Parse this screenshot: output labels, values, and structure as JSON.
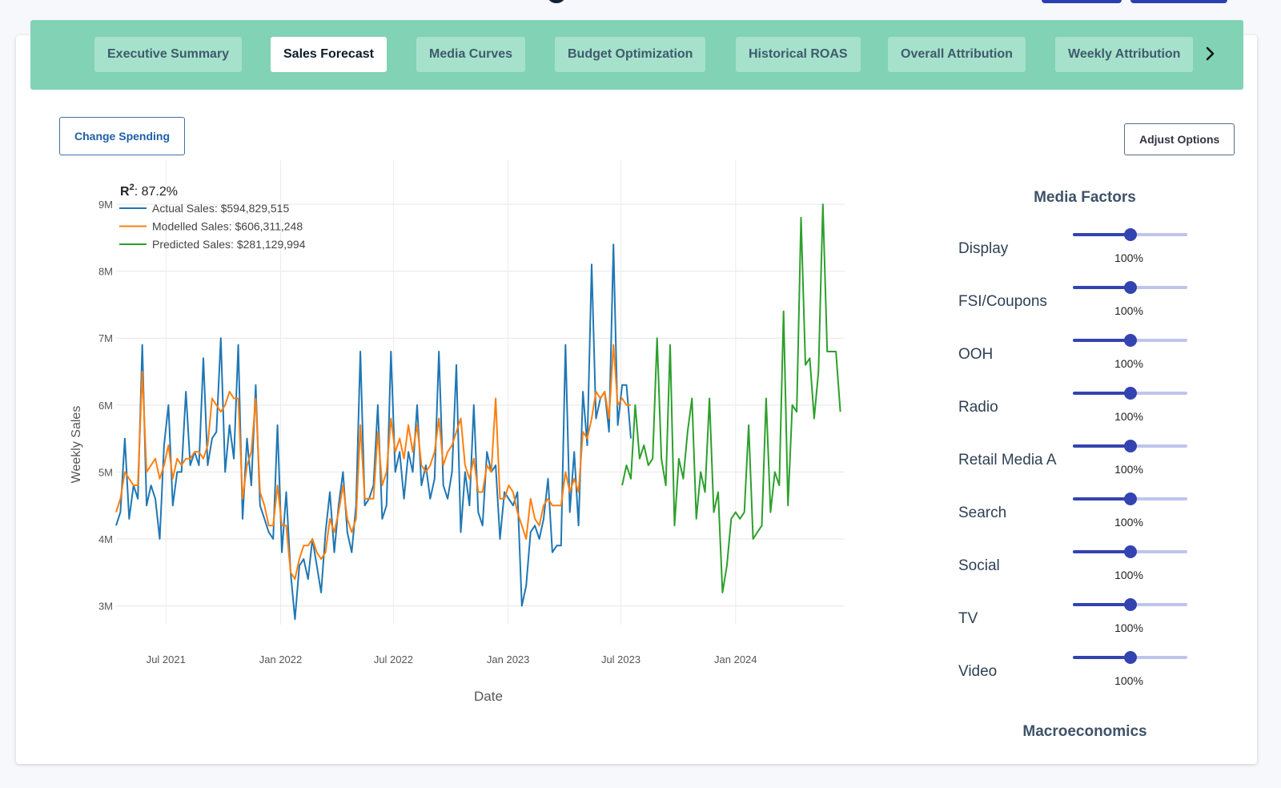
{
  "colors": {
    "actual": "#1f77b4",
    "modelled": "#ff7f0e",
    "predicted": "#2ca02c",
    "tabbar": "#82d2b5",
    "slider": "#3343b0"
  },
  "tabs": [
    {
      "label": "Executive Summary",
      "active": false
    },
    {
      "label": "Sales Forecast",
      "active": true
    },
    {
      "label": "Media Curves",
      "active": false
    },
    {
      "label": "Budget Optimization",
      "active": false
    },
    {
      "label": "Historical ROAS",
      "active": false
    },
    {
      "label": "Overall Attribution",
      "active": false
    },
    {
      "label": "Weekly Attribution",
      "active": false
    }
  ],
  "tab_next_icon": "chevron-right-icon",
  "buttons": {
    "change_spending": "Change Spending",
    "adjust_options": "Adjust Options"
  },
  "media_factors": {
    "title": "Media Factors",
    "items": [
      {
        "label": "Display",
        "value": "100%",
        "level": 0.5
      },
      {
        "label": "FSI/Coupons",
        "value": "100%",
        "level": 0.5
      },
      {
        "label": "OOH",
        "value": "100%",
        "level": 0.5
      },
      {
        "label": "Radio",
        "value": "100%",
        "level": 0.5
      },
      {
        "label": "Retail Media A",
        "value": "100%",
        "level": 0.5
      },
      {
        "label": "Search",
        "value": "100%",
        "level": 0.5
      },
      {
        "label": "Social",
        "value": "100%",
        "level": 0.5
      },
      {
        "label": "TV",
        "value": "100%",
        "level": 0.5
      },
      {
        "label": "Video",
        "value": "100%",
        "level": 0.5
      }
    ]
  },
  "macro_title": "Macroeconomics",
  "chart_data": {
    "type": "line",
    "r2_label": "R",
    "r2_superscript": "2",
    "r2_value": ": 87.2%",
    "xlabel": "Date",
    "ylabel": "Weekly Sales",
    "x_ticks": [
      "Jul 2021",
      "Jan 2022",
      "Jul 2022",
      "Jan 2023",
      "Jul 2023",
      "Jan 2024"
    ],
    "y_ticks": [
      "3M",
      "4M",
      "5M",
      "6M",
      "7M",
      "8M",
      "9M"
    ],
    "ylim": [
      2.6,
      9.3
    ],
    "grid": true,
    "legend_position": "top-left",
    "series": [
      {
        "name": "Actual Sales: $594,829,515",
        "start": "2021-04-12",
        "values": [
          4.2,
          4.4,
          5.5,
          4.3,
          4.8,
          4.6,
          6.9,
          4.5,
          4.8,
          4.6,
          4.0,
          5.4,
          6.0,
          4.5,
          5.0,
          5.0,
          6.2,
          5.1,
          5.3,
          5.1,
          6.7,
          5.1,
          5.5,
          5.6,
          7.0,
          5.0,
          5.7,
          5.2,
          6.9,
          4.3,
          5.5,
          4.8,
          6.3,
          4.5,
          4.3,
          4.1,
          4.0,
          5.7,
          3.8,
          4.7,
          3.5,
          2.8,
          3.6,
          3.7,
          3.4,
          4.0,
          3.6,
          3.2,
          4.1,
          4.7,
          3.8,
          4.5,
          5.0,
          4.1,
          3.8,
          4.5,
          6.8,
          4.5,
          4.6,
          4.8,
          6.0,
          4.3,
          4.5,
          6.8,
          5.0,
          5.3,
          4.6,
          5.3,
          5.0,
          6.0,
          4.8,
          5.1,
          4.6,
          4.9,
          6.8,
          4.8,
          4.6,
          5.0,
          6.6,
          4.1,
          5.0,
          4.5,
          6.0,
          4.4,
          4.2,
          5.3,
          5.0,
          5.1,
          4.0,
          4.7,
          4.6,
          4.5,
          4.7,
          3.0,
          3.3,
          4.1,
          4.2,
          4.0,
          4.3,
          4.9,
          3.8,
          3.9,
          3.9,
          6.9,
          4.4,
          5.3,
          4.2,
          6.2,
          5.4,
          8.1,
          5.8,
          6.1,
          6.2,
          5.6,
          8.4,
          5.7,
          6.3,
          6.3,
          5.5
        ],
        "color": "#1f77b4"
      },
      {
        "name": "Modelled Sales: $606,311,248",
        "start": "2021-04-12",
        "values": [
          4.4,
          4.6,
          5.0,
          4.9,
          4.8,
          4.8,
          6.5,
          5.0,
          5.1,
          5.2,
          4.9,
          5.1,
          5.4,
          4.9,
          5.2,
          5.1,
          5.2,
          5.2,
          5.3,
          5.3,
          5.2,
          5.4,
          6.1,
          6.0,
          5.9,
          6.0,
          6.2,
          6.1,
          6.1,
          4.6,
          5.1,
          5.3,
          6.1,
          4.7,
          4.5,
          4.2,
          4.2,
          4.8,
          4.2,
          4.2,
          3.5,
          3.4,
          3.7,
          3.9,
          3.9,
          4.0,
          3.8,
          3.7,
          3.8,
          4.3,
          4.1,
          4.4,
          4.8,
          4.3,
          4.1,
          4.3,
          5.7,
          4.6,
          4.6,
          4.6,
          5.6,
          4.8,
          5.0,
          5.8,
          5.3,
          5.5,
          5.2,
          5.7,
          5.3,
          5.7,
          5.1,
          5.0,
          5.1,
          5.3,
          5.8,
          5.1,
          5.3,
          5.4,
          5.6,
          5.8,
          5.1,
          4.9,
          5.2,
          4.7,
          4.7,
          5.1,
          5.0,
          6.1,
          4.6,
          4.6,
          4.8,
          4.7,
          4.4,
          4.2,
          4.0,
          4.6,
          4.3,
          4.2,
          4.5,
          4.6,
          4.5,
          4.5,
          4.5,
          5.0,
          4.7,
          4.9,
          4.7,
          5.6,
          5.5,
          5.8,
          6.2,
          6.1,
          6.2,
          5.8,
          6.9,
          6.0,
          6.1,
          6.0,
          6.0
        ],
        "color": "#ff7f0e"
      },
      {
        "name": "Predicted Sales: $281,129,994",
        "start": "2023-07-03",
        "values": [
          4.8,
          5.1,
          4.9,
          6.0,
          5.2,
          5.4,
          5.1,
          5.2,
          7.0,
          5.2,
          4.8,
          6.9,
          4.2,
          5.2,
          4.9,
          5.6,
          6.1,
          4.3,
          5.0,
          4.7,
          6.1,
          4.4,
          4.7,
          3.2,
          3.6,
          4.3,
          4.4,
          4.3,
          4.4,
          5.7,
          4.0,
          4.1,
          4.2,
          6.1,
          4.4,
          5.0,
          4.8,
          7.4,
          4.5,
          6.0,
          5.9,
          8.8,
          6.6,
          6.7,
          5.8,
          6.5,
          9.0,
          6.8,
          6.8,
          6.8,
          5.9
        ],
        "color": "#2ca02c"
      }
    ]
  }
}
